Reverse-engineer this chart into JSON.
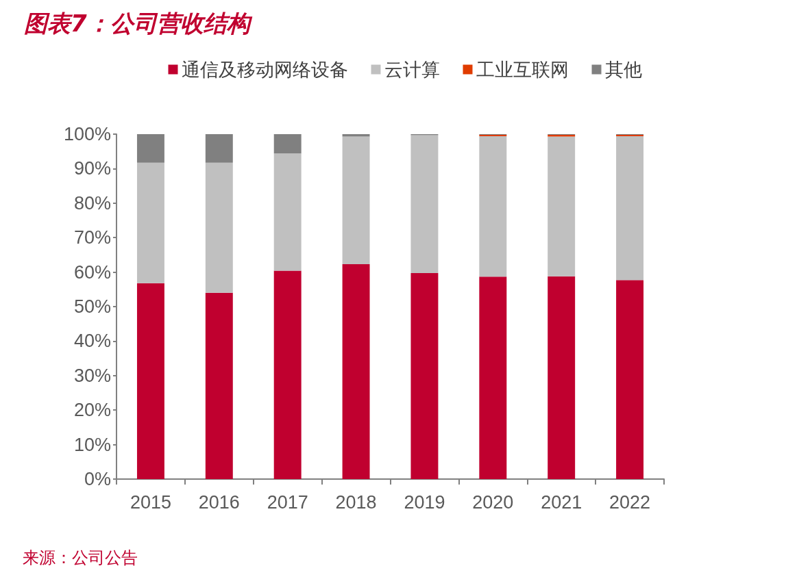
{
  "chart_data": {
    "type": "bar",
    "title": "图表7：公司营收结构",
    "annotations": [
      "来源：公司公告"
    ],
    "stacked": true,
    "legend": "top",
    "grid": false,
    "categories": [
      "2015",
      "2016",
      "2017",
      "2018",
      "2019",
      "2020",
      "2021",
      "2022"
    ],
    "ylim": [
      0,
      100
    ],
    "yticks": [
      {
        "value": 0,
        "label": "0%"
      },
      {
        "value": 10,
        "label": "10%"
      },
      {
        "value": 20,
        "label": "20%"
      },
      {
        "value": 30,
        "label": "30%"
      },
      {
        "value": 40,
        "label": "40%"
      },
      {
        "value": 50,
        "label": "50%"
      },
      {
        "value": 60,
        "label": "60%"
      },
      {
        "value": 70,
        "label": "70%"
      },
      {
        "value": 80,
        "label": "80%"
      },
      {
        "value": 90,
        "label": "90%"
      },
      {
        "value": 100,
        "label": "100%"
      }
    ],
    "series": [
      {
        "name": "通信及移动网络设备",
        "color": "#c0002f",
        "values": [
          56.8,
          54.0,
          60.4,
          62.3,
          59.7,
          58.7,
          58.8,
          57.7
        ]
      },
      {
        "name": "云计算",
        "color": "#c0c0c0",
        "values": [
          34.9,
          37.7,
          34.0,
          37.0,
          40.0,
          40.7,
          40.5,
          41.7
        ]
      },
      {
        "name": "工业互联网",
        "color": "#e03c00",
        "values": [
          0,
          0,
          0,
          0,
          0,
          0.4,
          0.5,
          0.4
        ]
      },
      {
        "name": "其他",
        "color": "#808080",
        "values": [
          8.3,
          8.3,
          5.6,
          0.7,
          0.3,
          0.2,
          0.2,
          0.2
        ]
      }
    ]
  }
}
